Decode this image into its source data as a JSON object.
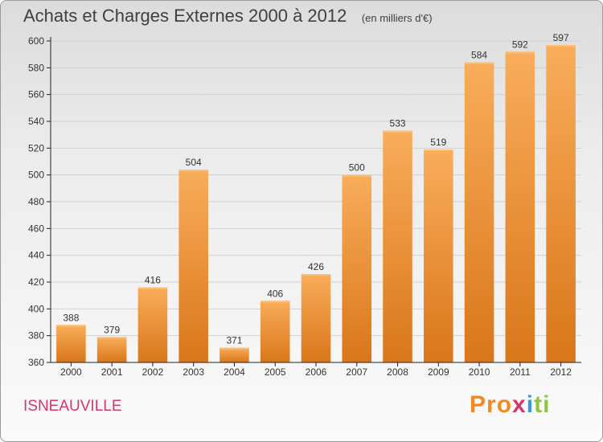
{
  "header": {
    "title": "Achats et Charges Externes 2000 à 2012",
    "unit": "(en milliers d'€)"
  },
  "footer": {
    "place": "ISNEAUVILLE",
    "brand_letters": [
      "P",
      "r",
      "o",
      "x",
      "i",
      "t",
      "i"
    ],
    "brand_colors": [
      "#f08a24",
      "#f08a24",
      "#f08a24",
      "#d2386b",
      "#3a9ad9",
      "#8cc63f",
      "#8cc63f"
    ]
  },
  "colors": {
    "bar": "#f4962e",
    "bar_light": "#f9ad5a",
    "bar_dark": "#d9761a",
    "axis": "#222222",
    "grid": "#d0d0d0"
  },
  "chart_data": {
    "type": "bar",
    "categories": [
      "2000",
      "2001",
      "2002",
      "2003",
      "2004",
      "2005",
      "2006",
      "2007",
      "2008",
      "2009",
      "2010",
      "2011",
      "2012"
    ],
    "values": [
      388,
      379,
      416,
      504,
      371,
      406,
      426,
      500,
      533,
      519,
      584,
      592,
      597
    ],
    "title": "Achats et Charges Externes 2000 à 2012",
    "ylim": [
      360,
      600
    ],
    "yticks": [
      360,
      380,
      400,
      420,
      440,
      460,
      480,
      500,
      520,
      540,
      560,
      580,
      600
    ],
    "grid": true,
    "data_labels": true
  }
}
